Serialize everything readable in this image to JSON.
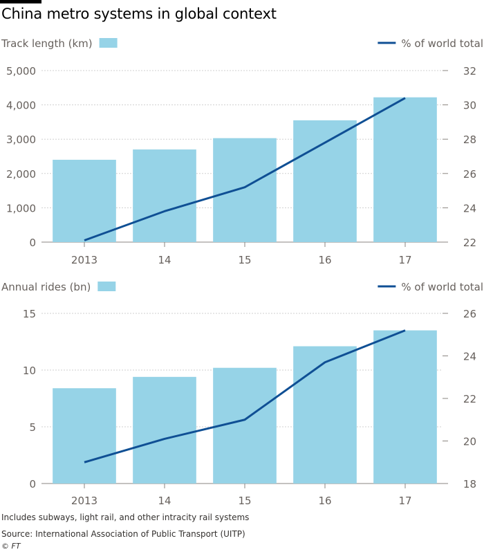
{
  "title": "China metro systems in global context",
  "colors": {
    "bar": "#96d3e7",
    "line": "#0f4f94",
    "grid": "#cfcfcf",
    "text": "#66605c"
  },
  "chart_data": [
    {
      "type": "bar",
      "categories": [
        "2013",
        "14",
        "15",
        "16",
        "17"
      ],
      "ylim": [
        0,
        5000
      ],
      "y_ticks": [
        "0",
        "1,000",
        "2,000",
        "3,000",
        "4,000",
        "5,000"
      ],
      "y2lim": [
        22,
        32
      ],
      "y2_ticks": [
        "22",
        "24",
        "26",
        "28",
        "30",
        "32"
      ],
      "legend_left": "Track length (km)",
      "legend_right": "% of world total",
      "series": [
        {
          "name": "Track length (km)",
          "type": "bar",
          "axis": "left",
          "values": [
            2400,
            2700,
            3030,
            3550,
            4220
          ]
        },
        {
          "name": "% of world total",
          "type": "line",
          "axis": "right",
          "values": [
            22.1,
            23.8,
            25.2,
            27.8,
            30.4
          ]
        }
      ]
    },
    {
      "type": "bar",
      "categories": [
        "2013",
        "14",
        "15",
        "16",
        "17"
      ],
      "ylim": [
        0,
        15
      ],
      "y_ticks": [
        "0",
        "5",
        "10",
        "15"
      ],
      "y2lim": [
        18,
        26
      ],
      "y2_ticks": [
        "18",
        "20",
        "22",
        "24",
        "26"
      ],
      "legend_left": "Annual rides (bn)",
      "legend_right": "% of world total",
      "series": [
        {
          "name": "Annual rides (bn)",
          "type": "bar",
          "axis": "left",
          "values": [
            8.4,
            9.4,
            10.2,
            12.1,
            13.5
          ]
        },
        {
          "name": "% of world total",
          "type": "line",
          "axis": "right",
          "values": [
            19.0,
            20.1,
            21.0,
            23.7,
            25.2
          ]
        }
      ]
    }
  ],
  "notes": {
    "line1": "Includes subways, light rail, and other intracity rail systems",
    "line2": "Source: International Association of Public Transport (UITP)"
  },
  "credit": "© FT"
}
